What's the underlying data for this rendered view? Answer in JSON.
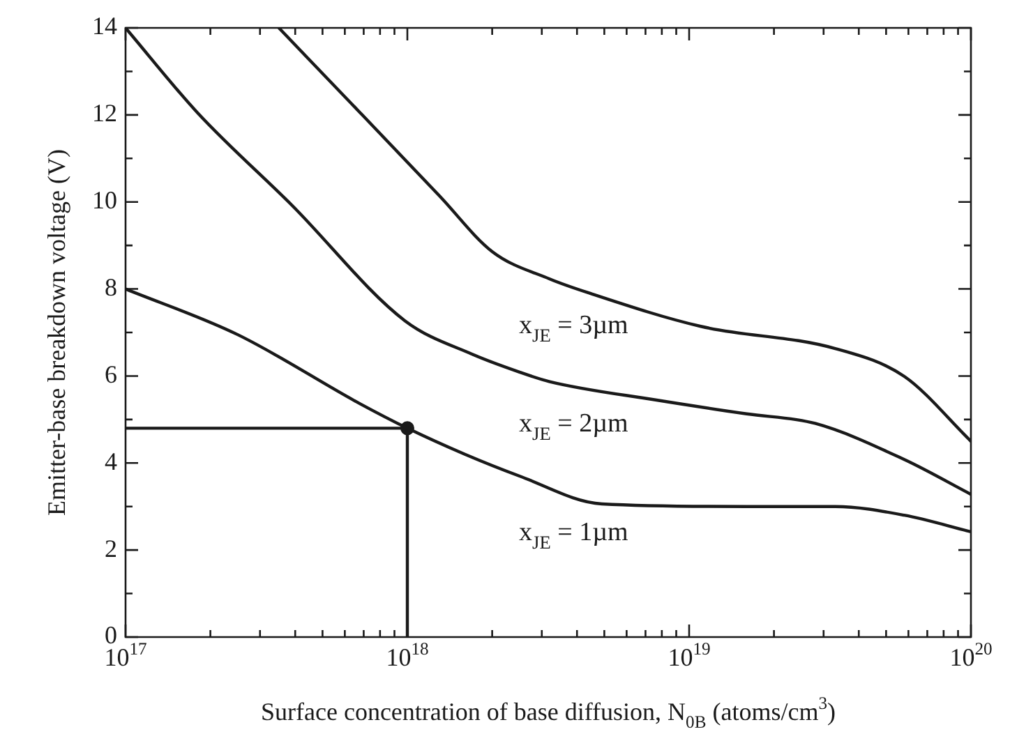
{
  "chart_data": {
    "type": "line",
    "ylabel": "Emitter-base breakdown voltage (V)",
    "xlabel": "Surface concentration of base diffusion, N$_{0B}$ (atoms/cm$^{3}$)",
    "log": "x",
    "grid": false,
    "legend": false,
    "marker": "none",
    "line_style": "solid",
    "xlim": [
      1e+17,
      1e+20
    ],
    "ylim": [
      0,
      14
    ],
    "xticks": [
      {
        "value": 1e+17,
        "label": "10$^{17}$"
      },
      {
        "value": 2e+17,
        "label": null
      },
      {
        "value": 3e+17,
        "label": null
      },
      {
        "value": 4e+17,
        "label": null
      },
      {
        "value": 5e+17,
        "label": null
      },
      {
        "value": 6e+17,
        "label": null
      },
      {
        "value": 7e+17,
        "label": null
      },
      {
        "value": 8e+17,
        "label": null
      },
      {
        "value": 9e+17,
        "label": null
      },
      {
        "value": 1e+18,
        "label": "10$^{18}$"
      },
      {
        "value": 2e+18,
        "label": null
      },
      {
        "value": 3e+18,
        "label": null
      },
      {
        "value": 4e+18,
        "label": null
      },
      {
        "value": 5e+18,
        "label": null
      },
      {
        "value": 6e+18,
        "label": null
      },
      {
        "value": 7e+18,
        "label": null
      },
      {
        "value": 8e+18,
        "label": null
      },
      {
        "value": 9e+18,
        "label": null
      },
      {
        "value": 1e+19,
        "label": "10$^{19}$"
      },
      {
        "value": 2e+19,
        "label": null
      },
      {
        "value": 3e+19,
        "label": null
      },
      {
        "value": 4e+19,
        "label": null
      },
      {
        "value": 5e+19,
        "label": null
      },
      {
        "value": 6e+19,
        "label": null
      },
      {
        "value": 7e+19,
        "label": null
      },
      {
        "value": 8e+19,
        "label": null
      },
      {
        "value": 9e+19,
        "label": null
      },
      {
        "value": 1e+20,
        "label": "10$^{20}$"
      }
    ],
    "yticks": [
      0,
      {
        "value": 1,
        "label": null
      },
      2,
      {
        "value": 3,
        "label": null
      },
      4,
      {
        "value": 5,
        "label": null
      },
      6,
      {
        "value": 7,
        "label": null
      },
      8,
      {
        "value": 9,
        "label": null
      },
      10,
      {
        "value": 11,
        "label": null
      },
      12,
      {
        "value": 13,
        "label": null
      },
      14
    ],
    "series": [
      {
        "color": "#1a1a1a",
        "x": [
          1e+17,
          2.5e+17,
          6.8e+17,
          1e+18,
          1.6e+18,
          2.5e+18,
          4.9e+18,
          1.6e+19,
          3.3e+19,
          5.8e+19,
          1e+20
        ],
        "values": [
          8,
          6.95,
          5.36,
          4.8,
          4.2,
          3.7,
          3.06,
          3.0,
          3.0,
          2.8,
          2.42
        ]
      },
      {
        "color": "#1a1a1a",
        "x": [
          1e+17,
          1.8e+17,
          3.9e+17,
          9.8e+17,
          1.7e+18,
          2.5e+18,
          3.2e+18,
          7.6e+18,
          1.6e+19,
          2.8e+19,
          5.8e+19,
          1e+20
        ],
        "values": [
          14,
          12.05,
          9.92,
          7.27,
          6.5,
          6.09,
          5.87,
          5.45,
          5.13,
          4.91,
          4.08,
          3.28
        ]
      },
      {
        "color": "#1a1a1a",
        "x": [
          3.5e+17,
          6.8e+17,
          1.3e+18,
          2e+18,
          3.2e+18,
          4.4e+18,
          1.1e+19,
          3.3e+19,
          5.8e+19,
          1e+20
        ],
        "values": [
          14,
          12.05,
          10.14,
          8.86,
          8.23,
          7.91,
          7.14,
          6.63,
          5.99,
          4.5
        ]
      },
      {
        "color": "#1a1a1a",
        "x": [
          1e+17,
          1e+18,
          1e+18
        ],
        "values": [
          4.8,
          4.8,
          0
        ]
      },
      {
        "type": "scatter",
        "marker": "circle",
        "color": "#1a1a1a",
        "x": [
          1e+18
        ],
        "values": [
          4.8
        ]
      }
    ],
    "annotations": [
      "x$_{JE}$ = 1µm",
      "x$_{JE}$ = 2µm",
      "x$_{JE}$ = 3µm"
    ]
  }
}
